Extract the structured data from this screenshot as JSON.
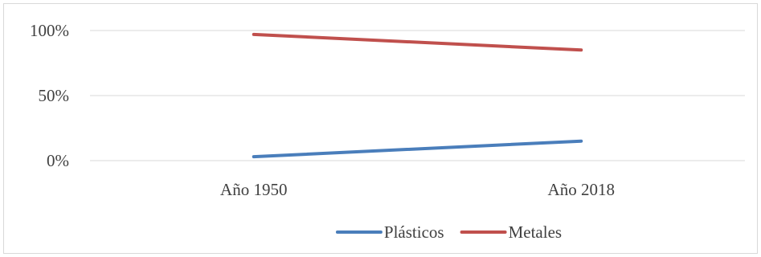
{
  "chart_data": {
    "type": "line",
    "title": "",
    "xlabel": "",
    "ylabel": "",
    "categories": [
      "Año 1950",
      "Año 2018"
    ],
    "ylim": [
      0,
      100
    ],
    "yticks": [
      {
        "value": 0,
        "label": "0%"
      },
      {
        "value": 50,
        "label": "50%"
      },
      {
        "value": 100,
        "label": "100%"
      }
    ],
    "grid": true,
    "legend_position": "bottom",
    "series": [
      {
        "name": "Plásticos",
        "color": "#4a7ebb",
        "values": [
          3,
          15
        ]
      },
      {
        "name": "Metales",
        "color": "#c0504d",
        "values": [
          97,
          85
        ]
      }
    ]
  }
}
